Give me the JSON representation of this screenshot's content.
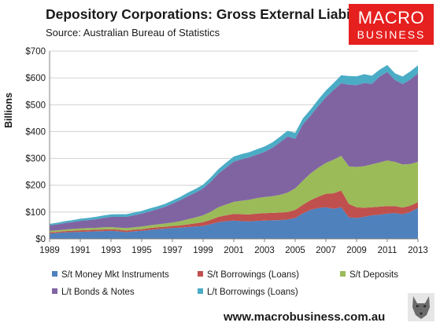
{
  "header": {
    "title": "Depository Corporations: Gross External Liabilities",
    "subtitle": "Source: Australian Bureau of Statistics"
  },
  "logo": {
    "line1": "MACRO",
    "line2": "BUSINESS"
  },
  "footer": {
    "url": "www.macrobusiness.com.au"
  },
  "chart_data": {
    "type": "area",
    "stacked": true,
    "title": "Depository Corporations: Gross External Liabilities",
    "subtitle": "Source: Australian Bureau of Statistics",
    "xlabel": "",
    "ylabel": "Billions",
    "ylim": [
      0,
      700
    ],
    "y_ticks": [
      "$0",
      "$100",
      "$200",
      "$300",
      "$400",
      "$500",
      "$600",
      "$700"
    ],
    "x_ticks": [
      "1989",
      "1991",
      "1993",
      "1995",
      "1997",
      "1999",
      "2001",
      "2003",
      "2005",
      "2007",
      "2009",
      "2011",
      "2013"
    ],
    "grid": true,
    "legend_position": "bottom",
    "x": [
      1989.0,
      1989.5,
      1990.0,
      1990.5,
      1991.0,
      1991.5,
      1992.0,
      1992.5,
      1993.0,
      1993.5,
      1994.0,
      1994.5,
      1995.0,
      1995.5,
      1996.0,
      1996.5,
      1997.0,
      1997.5,
      1998.0,
      1998.5,
      1999.0,
      1999.5,
      2000.0,
      2000.5,
      2001.0,
      2001.5,
      2002.0,
      2002.5,
      2003.0,
      2003.5,
      2004.0,
      2004.5,
      2005.0,
      2005.5,
      2006.0,
      2006.5,
      2007.0,
      2007.5,
      2008.0,
      2008.5,
      2009.0,
      2009.5,
      2010.0,
      2010.5,
      2011.0,
      2011.5,
      2012.0,
      2012.5,
      2013.0
    ],
    "series": [
      {
        "name": "S/t Money Mkt Instruments",
        "color": "#4f81bd",
        "values": [
          20,
          22,
          24,
          25,
          26,
          27,
          28,
          29,
          30,
          28,
          25,
          28,
          30,
          33,
          36,
          38,
          40,
          42,
          44,
          46,
          48,
          55,
          62,
          66,
          68,
          66,
          65,
          67,
          68,
          69,
          70,
          72,
          78,
          95,
          108,
          115,
          118,
          112,
          118,
          80,
          78,
          82,
          88,
          90,
          94,
          96,
          92,
          100,
          115
        ]
      },
      {
        "name": "S/t Borrowings (Loans)",
        "color": "#c0504d",
        "values": [
          4,
          4,
          5,
          5,
          6,
          6,
          6,
          6,
          6,
          6,
          6,
          6,
          6,
          7,
          7,
          7,
          8,
          8,
          10,
          12,
          14,
          16,
          20,
          22,
          25,
          26,
          26,
          27,
          28,
          28,
          28,
          28,
          30,
          32,
          36,
          42,
          50,
          58,
          62,
          50,
          40,
          34,
          30,
          30,
          28,
          26,
          25,
          24,
          22
        ]
      },
      {
        "name": "S/t Deposits",
        "color": "#9bbb59",
        "values": [
          6,
          6,
          6,
          7,
          7,
          7,
          7,
          8,
          8,
          8,
          9,
          9,
          10,
          10,
          11,
          12,
          13,
          16,
          19,
          22,
          26,
          30,
          36,
          40,
          45,
          50,
          55,
          58,
          60,
          62,
          66,
          72,
          80,
          90,
          100,
          108,
          115,
          125,
          130,
          140,
          150,
          155,
          160,
          165,
          170,
          165,
          160,
          155,
          150
        ]
      },
      {
        "name": "L/t Bonds & Notes",
        "color": "#8064a2",
        "values": [
          20,
          22,
          24,
          26,
          28,
          30,
          32,
          35,
          38,
          40,
          42,
          45,
          48,
          52,
          56,
          62,
          70,
          78,
          86,
          92,
          100,
          112,
          125,
          138,
          150,
          155,
          158,
          162,
          168,
          180,
          195,
          210,
          185,
          210,
          215,
          230,
          245,
          260,
          270,
          305,
          305,
          310,
          300,
          320,
          330,
          305,
          300,
          315,
          330
        ]
      },
      {
        "name": "L/t Borrowings (Loans)",
        "color": "#4bacc6",
        "values": [
          6,
          6,
          7,
          7,
          8,
          8,
          9,
          9,
          9,
          10,
          10,
          10,
          10,
          11,
          11,
          11,
          12,
          12,
          13,
          14,
          14,
          16,
          17,
          18,
          19,
          19,
          19,
          20,
          20,
          20,
          21,
          21,
          22,
          22,
          23,
          24,
          25,
          26,
          30,
          32,
          33,
          33,
          30,
          26,
          26,
          25,
          28,
          30,
          30
        ]
      }
    ]
  }
}
